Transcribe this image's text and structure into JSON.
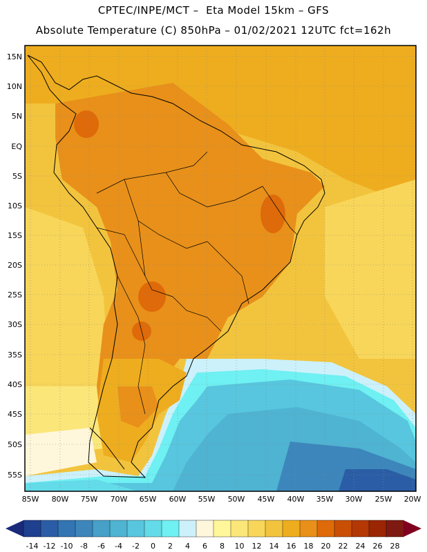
{
  "header": {
    "line1": "CPTEC/INPE/MCT –  Eta Model 15km – GFS",
    "line2": "Absolute Temperature (C) 850hPa – 01/02/2021 12UTC fct=162h"
  },
  "map": {
    "lat_labels": [
      "15N",
      "10N",
      "5N",
      "EQ",
      "5S",
      "10S",
      "15S",
      "20S",
      "25S",
      "30S",
      "35S",
      "40S",
      "45S",
      "50S",
      "55S"
    ],
    "lon_labels": [
      "85W",
      "80W",
      "75W",
      "70W",
      "65W",
      "60W",
      "55W",
      "50W",
      "45W",
      "40W",
      "35W",
      "30W",
      "25W",
      "20W"
    ]
  },
  "legend": {
    "ticks": [
      "-14",
      "-12",
      "-10",
      "-8",
      "-6",
      "-4",
      "-2",
      "0",
      "2",
      "4",
      "6",
      "8",
      "10",
      "12",
      "14",
      "16",
      "18",
      "20",
      "22",
      "24",
      "26",
      "28"
    ],
    "colors": [
      "#1f3f8f",
      "#2a5da5",
      "#3374b2",
      "#3c86bb",
      "#46a0c8",
      "#4fb3d2",
      "#57c6de",
      "#63dbe8",
      "#6ff0f2",
      "#ccf1fb",
      "#fff7dc",
      "#fff79a",
      "#fbe67a",
      "#f8d65a",
      "#f2c43d",
      "#eead1f",
      "#e8901a",
      "#df6a09",
      "#c94f04",
      "#b33804",
      "#9a2604",
      "#7e1a12"
    ],
    "low_end_color": "#1a2a7a",
    "high_end_color": "#800020"
  }
}
